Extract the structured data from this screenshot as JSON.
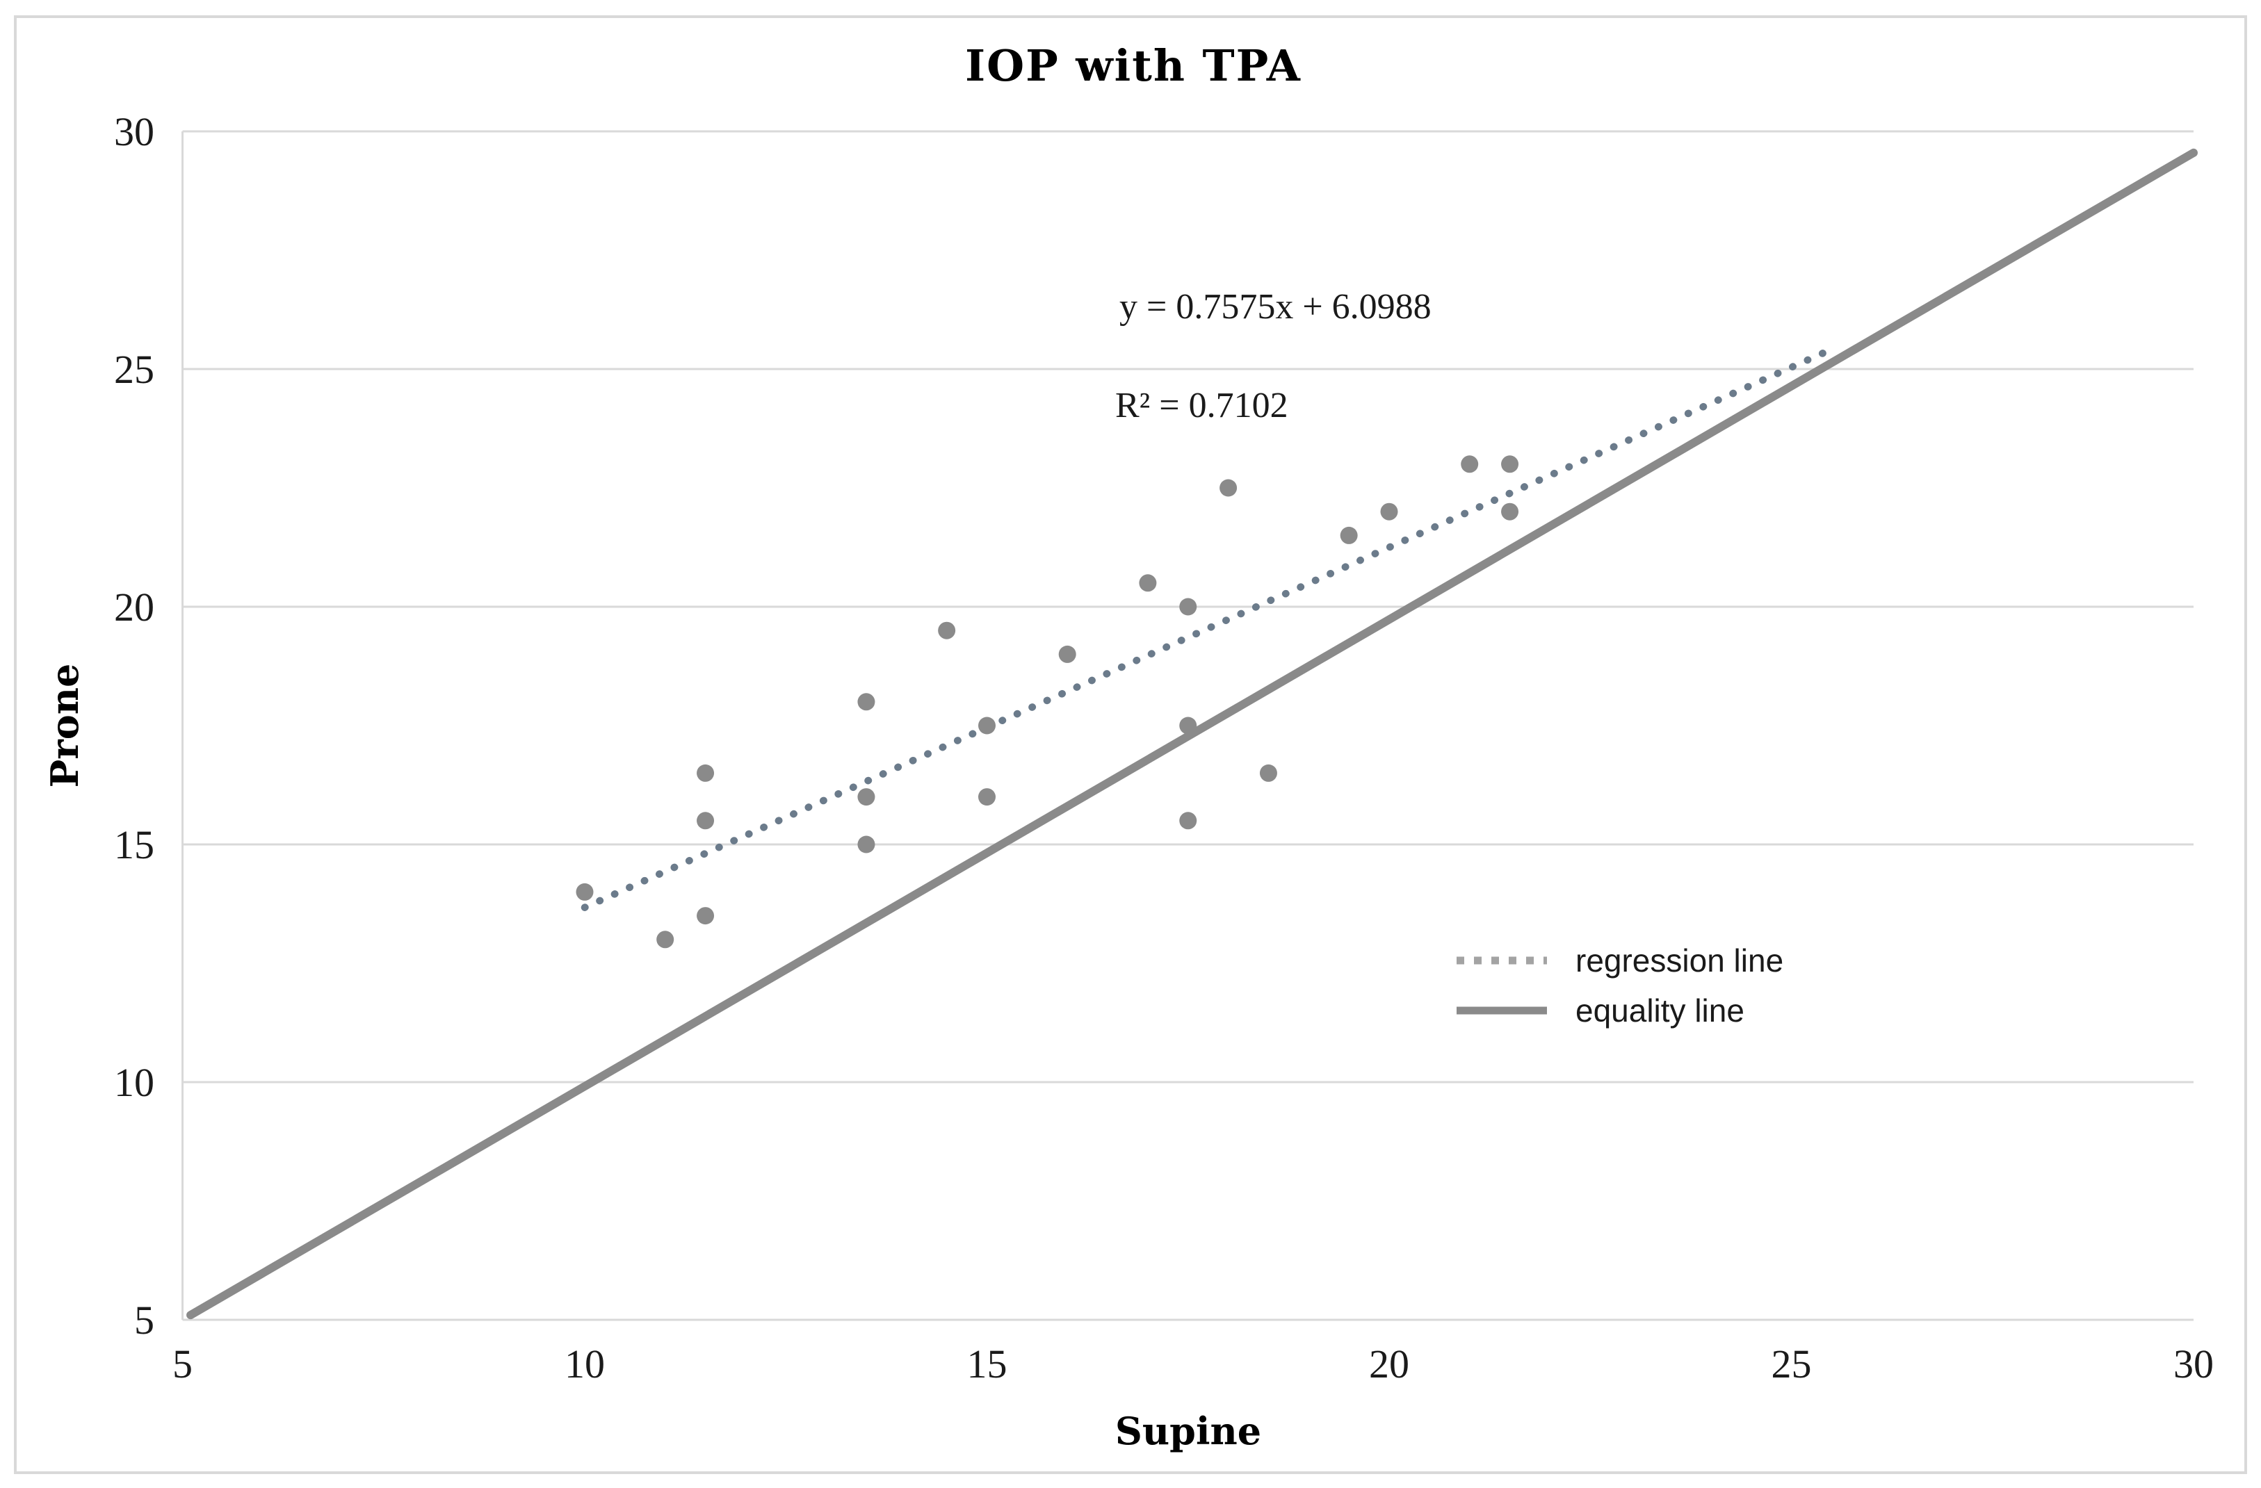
{
  "chart_data": {
    "type": "scatter",
    "title": "IOP with TPA",
    "xlabel": "Supine",
    "ylabel": "Prone",
    "xlim": [
      5,
      30
    ],
    "ylim": [
      5,
      30
    ],
    "x_ticks": [
      5,
      10,
      15,
      20,
      25,
      30
    ],
    "y_ticks": [
      5,
      10,
      15,
      20,
      25,
      30
    ],
    "grid": "horizontal-only",
    "points": [
      [
        10,
        14
      ],
      [
        11,
        13
      ],
      [
        11.5,
        13.5
      ],
      [
        11.5,
        15.5
      ],
      [
        11.5,
        16.5
      ],
      [
        13.5,
        15
      ],
      [
        13.5,
        16
      ],
      [
        13.5,
        18
      ],
      [
        14.5,
        19.5
      ],
      [
        15,
        16
      ],
      [
        15,
        17.5
      ],
      [
        16,
        19
      ],
      [
        17,
        20.5
      ],
      [
        17.5,
        15.5
      ],
      [
        17.5,
        17.5
      ],
      [
        17.5,
        20
      ],
      [
        18,
        22.5
      ],
      [
        18.5,
        16.5
      ],
      [
        19.5,
        21.5
      ],
      [
        20,
        22
      ],
      [
        21,
        23
      ],
      [
        21.5,
        22
      ],
      [
        21.5,
        23
      ]
    ],
    "regression": {
      "slope": 0.7575,
      "intercept": 6.0988,
      "r2": 0.7102,
      "x_start": 10,
      "x_end": 25.5,
      "style": "dotted"
    },
    "equality": {
      "p1": [
        5.1,
        5.1
      ],
      "p2": [
        30,
        29.55
      ],
      "style": "solid"
    },
    "legend": {
      "position": "right-middle",
      "entries": [
        {
          "label": "regression line",
          "style": "dotted"
        },
        {
          "label": "equality line",
          "style": "solid"
        }
      ]
    },
    "annotations": {
      "equation": "y = 0.7575x + 6.0988",
      "r_squared": "R² = 0.7102"
    },
    "colors": {
      "point": "#8a8a8a",
      "regression_line": "#6b7b8b",
      "legend_regression_sample": "#a3a3a3",
      "equality_line": "#8a8a8a",
      "gridline": "#d9d9d9",
      "axis_line": "#d9d9d9",
      "chart_border": "#d9d9d9",
      "text": "#1a1a1a"
    }
  }
}
